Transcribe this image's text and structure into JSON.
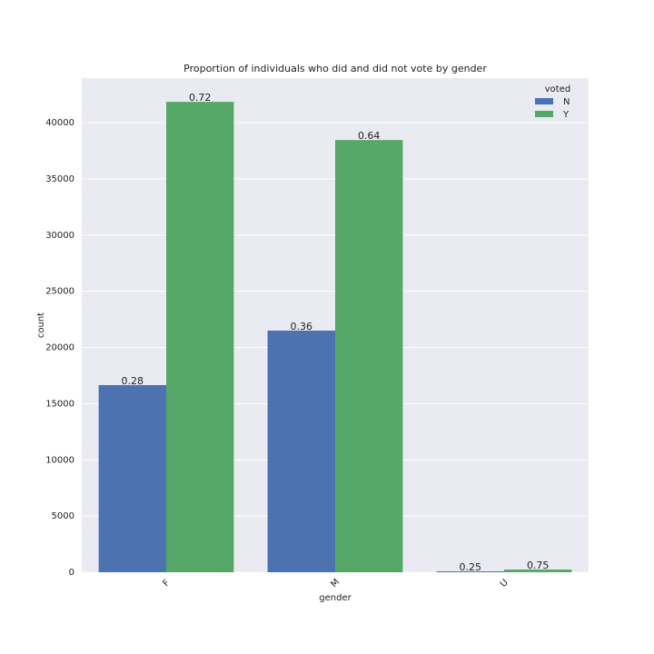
{
  "chart_data": {
    "type": "bar",
    "title": "Proportion of individuals who did and did not vote by gender",
    "x_label": "gender",
    "y_label": "count",
    "categories": [
      "F",
      "M",
      "U"
    ],
    "series": [
      {
        "name": "N",
        "color": "#4c72b0",
        "values": [
          16650,
          21500,
          80
        ],
        "annotations": [
          0.28,
          0.36,
          0.25
        ]
      },
      {
        "name": "Y",
        "color": "#55a868",
        "values": [
          41850,
          38450,
          240
        ],
        "annotations": [
          0.72,
          0.64,
          0.75
        ]
      }
    ],
    "legend_title": "voted",
    "legend_position": "upper right",
    "ylim": [
      0,
      43960
    ],
    "yticks": [
      0,
      5000,
      10000,
      15000,
      20000,
      25000,
      30000,
      35000,
      40000
    ],
    "grid": true,
    "background": "#eaeaf2"
  }
}
